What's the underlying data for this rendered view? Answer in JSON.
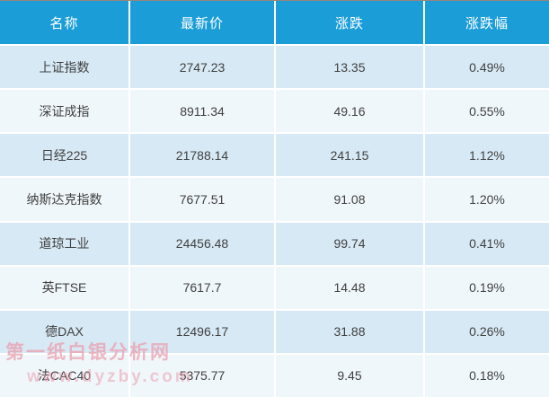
{
  "chart_data": {
    "type": "table",
    "columns": [
      "名称",
      "最新价",
      "涨跌",
      "涨跌幅"
    ],
    "rows": [
      [
        "上证指数",
        "2747.23",
        "13.35",
        "0.49%"
      ],
      [
        "深证成指",
        "8911.34",
        "49.16",
        "0.55%"
      ],
      [
        "日经225",
        "21788.14",
        "241.15",
        "1.12%"
      ],
      [
        "纳斯达克指数",
        "7677.51",
        "91.08",
        "1.20%"
      ],
      [
        "道琼工业",
        "24456.48",
        "99.74",
        "0.41%"
      ],
      [
        "英FTSE",
        "7617.7",
        "14.48",
        "0.19%"
      ],
      [
        "德DAX",
        "12496.17",
        "31.88",
        "0.26%"
      ],
      [
        "法CAC40",
        "5375.77",
        "9.45",
        "0.18%"
      ]
    ],
    "layout": {
      "header_position": "top",
      "row_striping": "alternating",
      "text_align": "center",
      "grid": "white 2px separators"
    }
  },
  "watermark": {
    "line1": "第一纸白银分析网",
    "line2": "www.dyzby.com"
  },
  "colors": {
    "header_bg": "#1b9ed8",
    "header_text": "#ffffff",
    "row_dark": "#d7e9f5",
    "row_light": "#f0f7fb",
    "body_text": "#3f3f3f",
    "watermark": "#eb9fae"
  }
}
